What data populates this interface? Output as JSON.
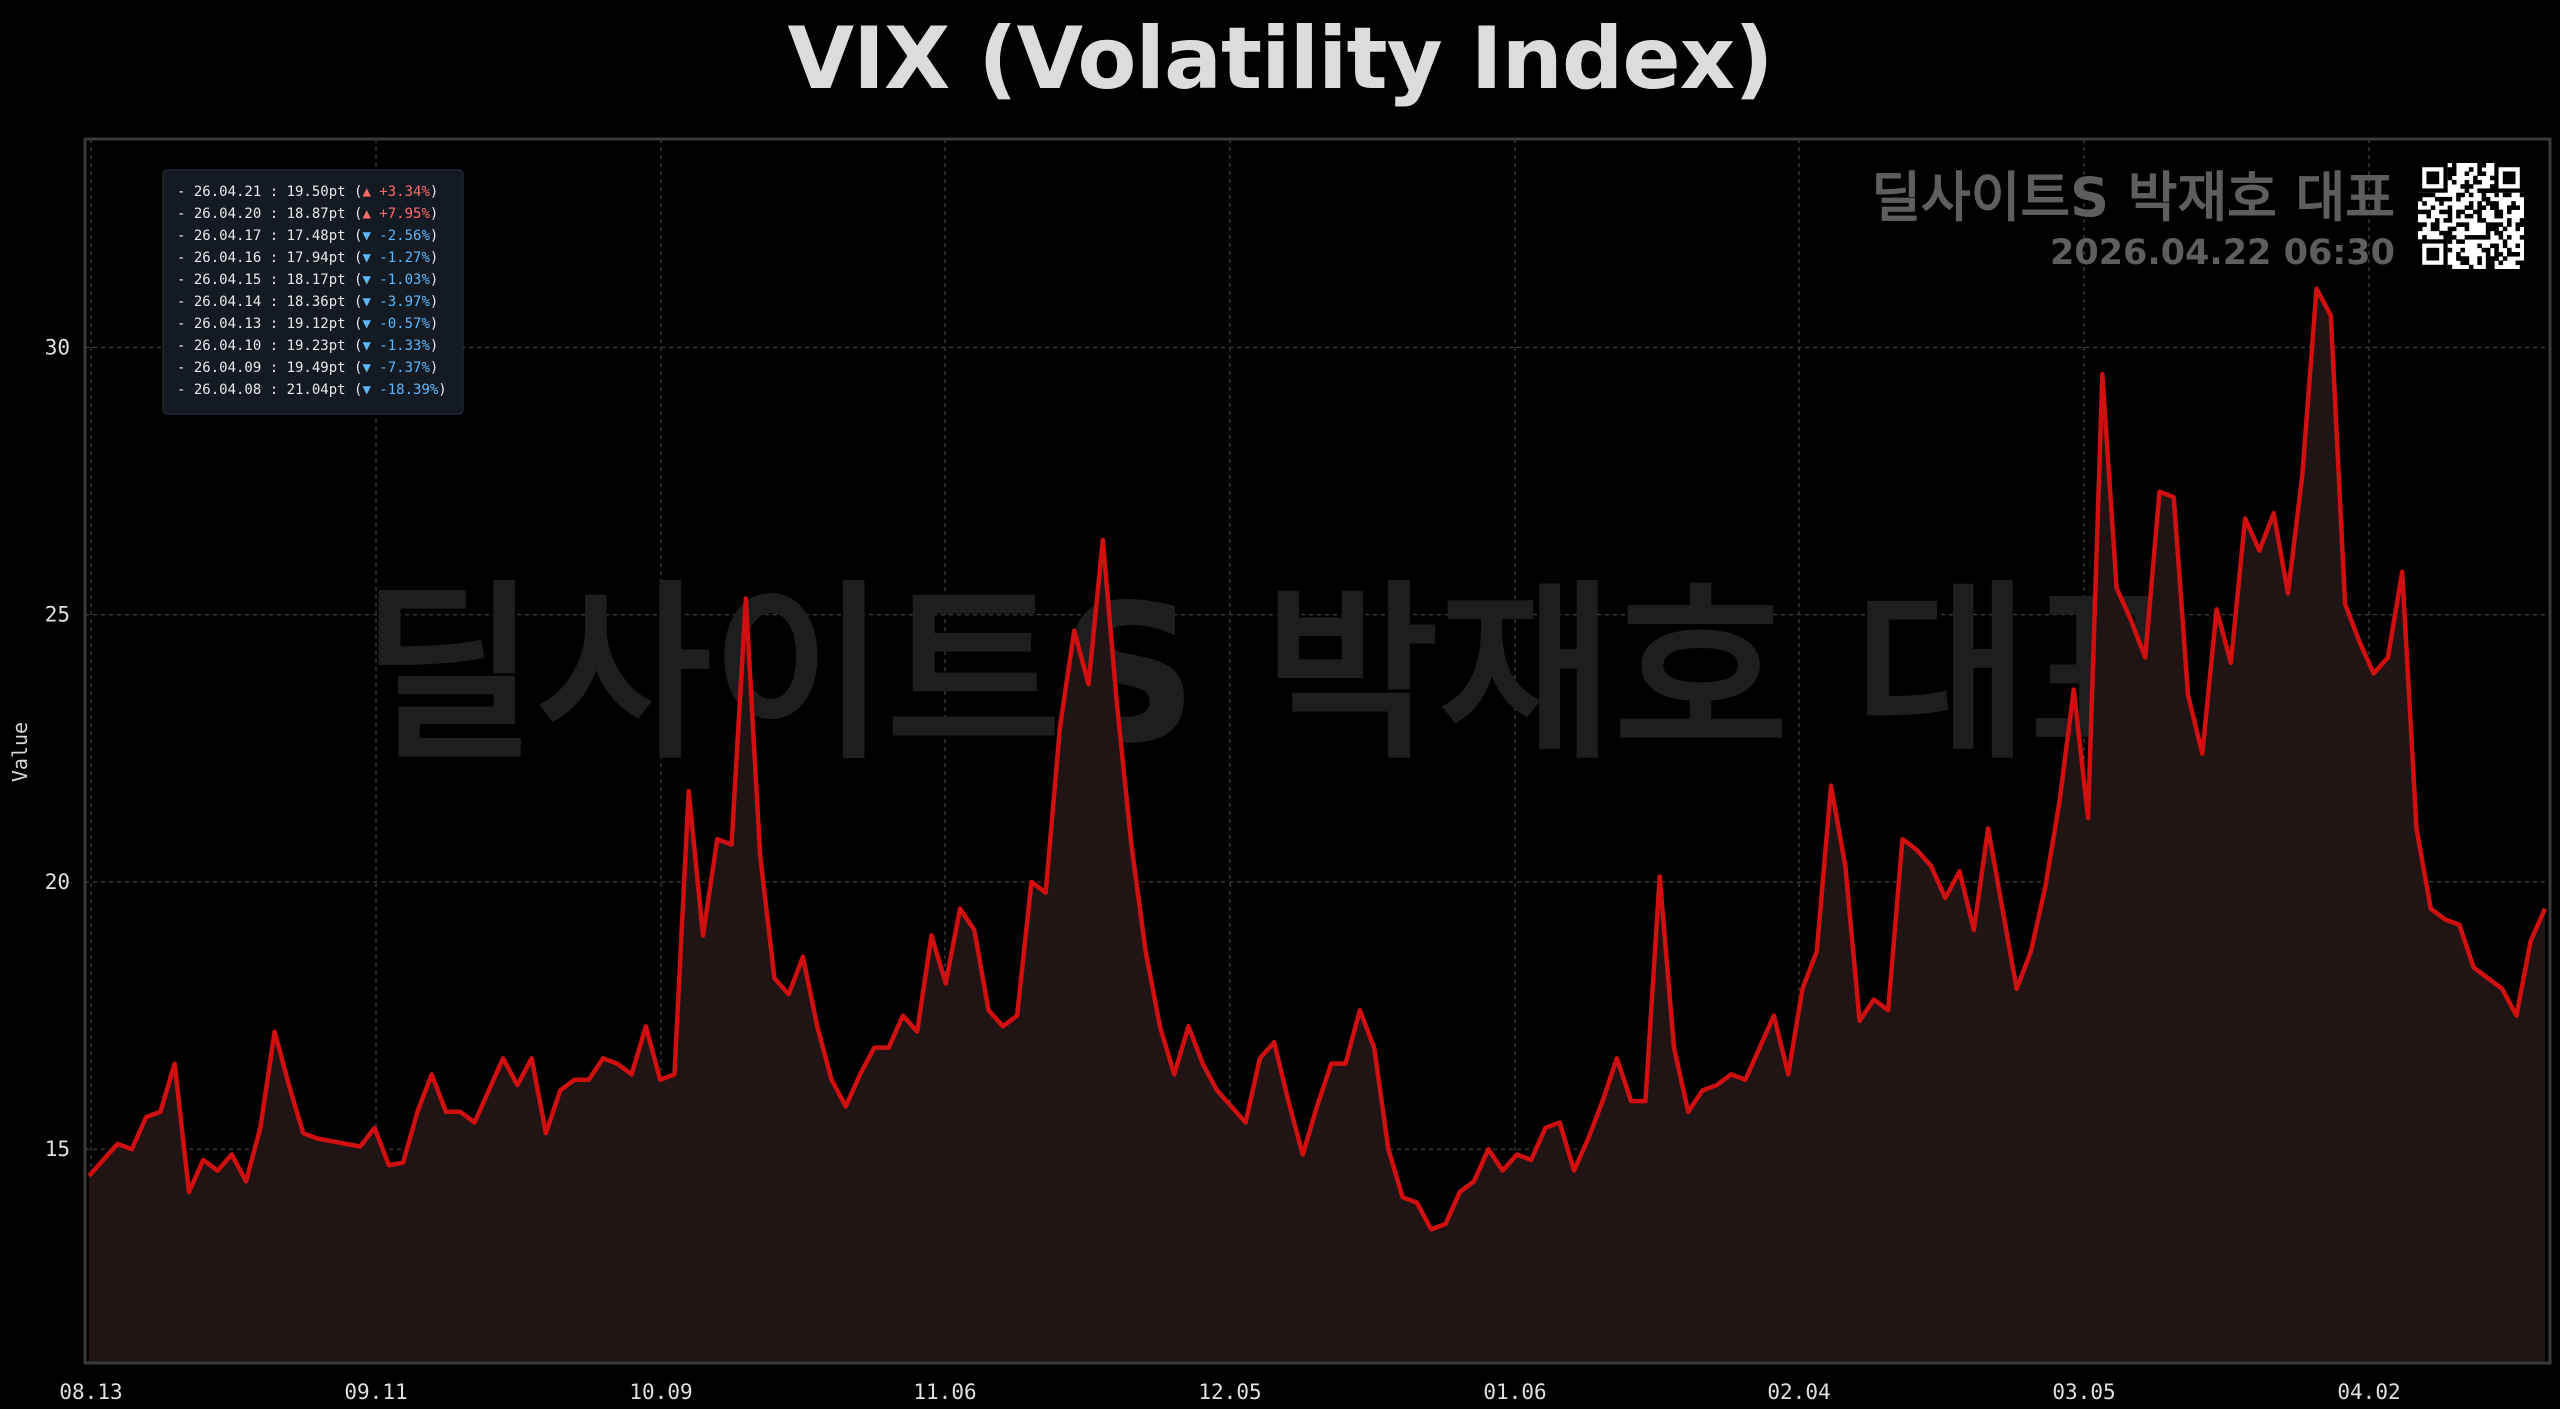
{
  "chart_data": {
    "type": "area",
    "title": "VIX (Volatility Index)",
    "ylabel": "Value",
    "xlabel": "",
    "x_ticks": [
      "08.13",
      "09.11",
      "10.09",
      "11.06",
      "12.05",
      "01.06",
      "02.04",
      "03.05",
      "04.02"
    ],
    "y_ticks": [
      15,
      20,
      25,
      30
    ],
    "ylim": [
      11.0,
      33.9
    ],
    "grid": true,
    "line_color": "#d01010",
    "fill_color": "#201414",
    "series": [
      {
        "values": [
          14.5,
          14.8,
          15.1,
          15.0,
          15.6,
          15.7,
          16.6,
          14.2,
          14.8,
          14.6,
          14.9,
          14.4,
          15.4,
          17.2,
          16.2,
          15.3,
          15.2,
          15.15,
          15.1,
          15.05,
          15.4,
          14.7,
          14.75,
          15.7,
          16.4,
          15.7,
          15.7,
          15.5,
          16.1,
          16.7,
          16.2,
          16.7,
          15.3,
          16.1,
          16.3,
          16.3,
          16.7,
          16.6,
          16.4,
          17.3,
          16.3,
          16.4,
          21.7,
          19.0,
          20.8,
          20.7,
          25.3,
          20.5,
          18.2,
          17.9,
          18.6,
          17.3,
          16.3,
          15.8,
          16.4,
          16.9,
          16.9,
          17.5,
          17.2,
          19.0,
          18.1,
          19.5,
          19.1,
          17.6,
          17.3,
          17.5,
          20.0,
          19.8,
          22.9,
          24.7,
          23.7,
          26.4,
          23.3,
          20.7,
          18.7,
          17.3,
          16.4,
          17.3,
          16.6,
          16.1,
          15.8,
          15.5,
          16.7,
          17.0,
          15.9,
          14.9,
          15.8,
          16.6,
          16.6,
          17.6,
          16.9,
          15.0,
          14.1,
          14.0,
          13.5,
          13.6,
          14.2,
          14.4,
          15.0,
          14.6,
          14.9,
          14.8,
          15.4,
          15.5,
          14.6,
          15.2,
          15.9,
          16.7,
          15.9,
          15.9,
          20.1,
          16.9,
          15.7,
          16.1,
          16.2,
          16.4,
          16.3,
          16.9,
          17.5,
          16.4,
          18.0,
          18.7,
          21.8,
          20.3,
          17.4,
          17.8,
          17.6,
          20.8,
          20.6,
          20.3,
          19.7,
          20.2,
          19.1,
          21.0,
          19.5,
          18.0,
          18.7,
          19.9,
          21.5,
          23.6,
          21.2,
          29.5,
          25.5,
          24.9,
          24.2,
          27.3,
          27.2,
          23.5,
          22.4,
          25.1,
          24.1,
          26.8,
          26.2,
          26.9,
          25.4,
          27.6,
          31.1,
          30.6,
          25.2,
          24.5,
          23.9,
          24.2,
          25.8,
          21.0,
          19.5,
          19.3,
          19.2,
          18.4,
          18.2,
          18.0,
          17.5,
          18.9,
          19.5
        ]
      }
    ]
  },
  "legend_box": {
    "entries": [
      {
        "date": "26.04.21",
        "value": "19.50pt",
        "dir": "▲",
        "change": "+3.34%",
        "color": "#ff6b6b"
      },
      {
        "date": "26.04.20",
        "value": "18.87pt",
        "dir": "▲",
        "change": "+7.95%",
        "color": "#ff6b6b"
      },
      {
        "date": "26.04.17",
        "value": "17.48pt",
        "dir": "▼",
        "change": "-2.56%",
        "color": "#5bb8ff"
      },
      {
        "date": "26.04.16",
        "value": "17.94pt",
        "dir": "▼",
        "change": "-1.27%",
        "color": "#5bb8ff"
      },
      {
        "date": "26.04.15",
        "value": "18.17pt",
        "dir": "▼",
        "change": "-1.03%",
        "color": "#5bb8ff"
      },
      {
        "date": "26.04.14",
        "value": "18.36pt",
        "dir": "▼",
        "change": "-3.97%",
        "color": "#5bb8ff"
      },
      {
        "date": "26.04.13",
        "value": "19.12pt",
        "dir": "▼",
        "change": "-0.57%",
        "color": "#5bb8ff"
      },
      {
        "date": "26.04.10",
        "value": "19.23pt",
        "dir": "▼",
        "change": "-1.33%",
        "color": "#5bb8ff"
      },
      {
        "date": "26.04.09",
        "value": "19.49pt",
        "dir": "▼",
        "change": "-7.37%",
        "color": "#5bb8ff"
      },
      {
        "date": "26.04.08",
        "value": "21.04pt",
        "dir": "▼",
        "change": "-18.39%",
        "color": "#5bb8ff"
      }
    ]
  },
  "watermark": {
    "text": "딜사이트S 박재호 대표",
    "brand": "딜사이트S 박재호 대표",
    "timestamp": "2026.04.22 06:30"
  },
  "qr_icon": "qr-code-icon"
}
